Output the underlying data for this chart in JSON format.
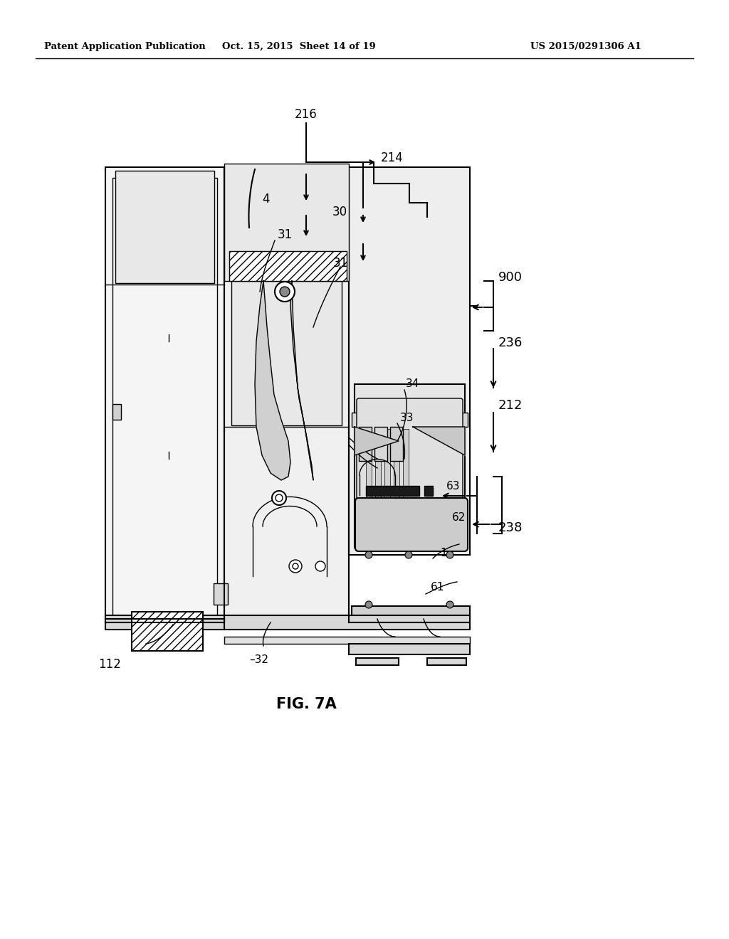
{
  "header_left": "Patent Application Publication",
  "header_center": "Oct. 15, 2015  Sheet 14 of 19",
  "header_right": "US 2015/0291306 A1",
  "figure_label": "FIG. 7A",
  "bg_color": "#ffffff",
  "line_color": "#000000"
}
